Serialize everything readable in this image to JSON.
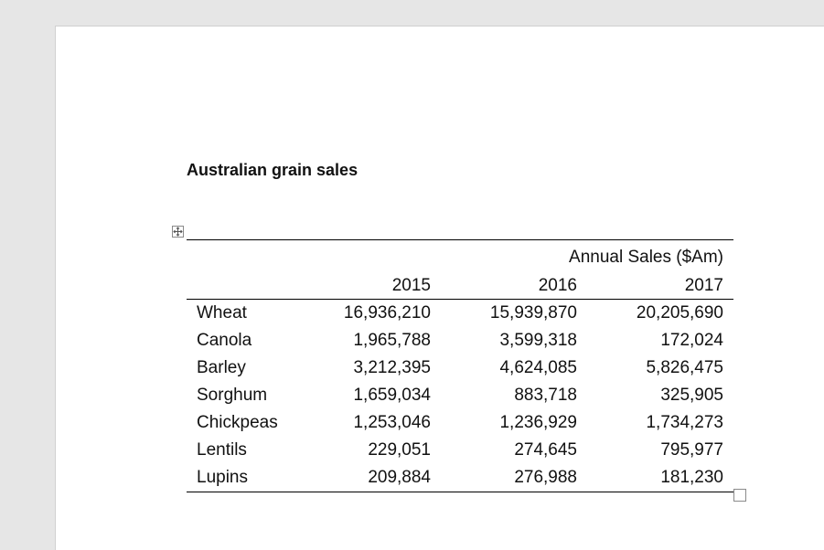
{
  "document": {
    "title": "Australian grain sales"
  },
  "table": {
    "super_header": "Annual Sales ($Am)",
    "columns": [
      "",
      "2015",
      "2016",
      "2017"
    ],
    "rows": [
      [
        "Wheat",
        "16,936,210",
        "15,939,870",
        "20,205,690"
      ],
      [
        "Canola",
        "1,965,788",
        "3,599,318",
        "172,024"
      ],
      [
        "Barley",
        "3,212,395",
        "4,624,085",
        "5,826,475"
      ],
      [
        "Sorghum",
        "1,659,034",
        "883,718",
        "325,905"
      ],
      [
        "Chickpeas",
        "1,253,046",
        "1,236,929",
        "1,734,273"
      ],
      [
        "Lentils",
        "229,051",
        "274,645",
        "795,977"
      ],
      [
        "Lupins",
        "209,884",
        "276,988",
        "181,230"
      ]
    ]
  },
  "icons": {
    "move_handle": "table-move-icon",
    "resize_handle": "table-resize-icon"
  }
}
